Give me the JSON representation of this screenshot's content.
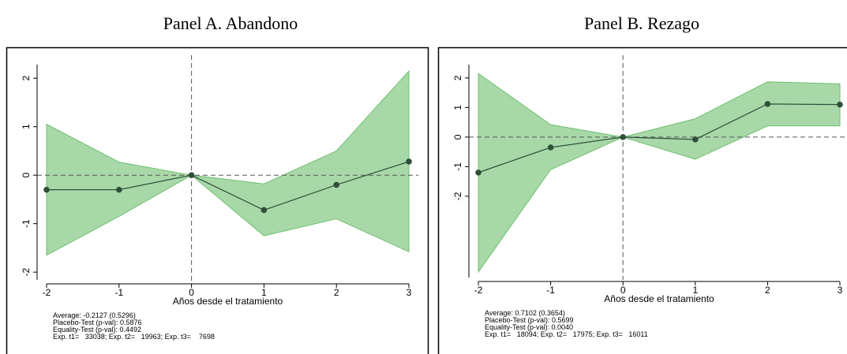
{
  "chart_data": [
    {
      "type": "line",
      "title": "Panel A. Abandono",
      "xlabel": "Años desde el tratamiento",
      "x": [
        -2,
        -1,
        0,
        1,
        2,
        3
      ],
      "values": [
        -0.3,
        -0.3,
        0,
        -0.72,
        -0.2,
        0.28
      ],
      "ci_lower": [
        -1.65,
        -0.85,
        0,
        -1.25,
        -0.9,
        -1.58
      ],
      "ci_upper": [
        1.05,
        0.27,
        0,
        -0.18,
        0.5,
        2.15
      ],
      "color": "#2f4f3a",
      "band_color": "#a8d8a8",
      "xlim": [
        -2,
        3
      ],
      "xticks": [
        -2,
        -1,
        0,
        1,
        2,
        3
      ],
      "ylim": [
        -2.16,
        2.28
      ],
      "yticks": [
        -2,
        -1,
        0,
        1,
        2
      ],
      "xline": 0,
      "yline": 0,
      "notes": [
        "Average: -0.2127 (0.5296)",
        "Placebo-Test (p-val): 0.5876",
        "Equality-Test (p-val): 0.4492",
        "Exp. t1=   33038; Exp. t2=   19963; Exp. t3=    7698"
      ]
    },
    {
      "type": "line",
      "title": "Panel B. Rezago",
      "xlabel": "Años desde el tratamiento",
      "x": [
        -2,
        -1,
        0,
        1,
        2,
        3
      ],
      "values": [
        -1.2,
        -0.35,
        0,
        -0.08,
        1.12,
        1.1
      ],
      "ci_lower": [
        -4.56,
        -1.1,
        0,
        -0.75,
        0.38,
        0.38
      ],
      "ci_upper": [
        2.15,
        0.42,
        0,
        0.62,
        1.87,
        1.8
      ],
      "color": "#2f4f3a",
      "band_color": "#a8d8a8",
      "xlim": [
        -2,
        3
      ],
      "xticks": [
        -2,
        -1,
        0,
        1,
        2,
        3
      ],
      "ylim": [
        -4.75,
        2.45
      ],
      "yticks": [
        -2,
        -1,
        0,
        1,
        2
      ],
      "xline": 0,
      "yline": 0,
      "notes": [
        "Average: 0.7102 (0.3654)",
        "Placebo-Test (p-val): 0.5699",
        "Equality-Test (p-val): 0.0040",
        "Exp. t1=   18094; Exp. t2=   17975; Exp. t3=   16011"
      ]
    }
  ]
}
